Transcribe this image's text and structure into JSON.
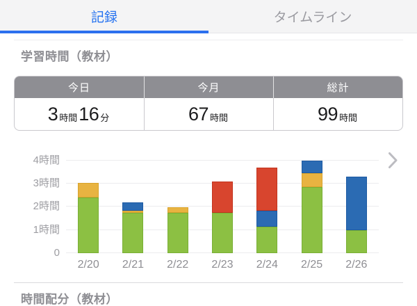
{
  "tabs": [
    {
      "label": "記録",
      "active": true
    },
    {
      "label": "タイムライン",
      "active": false
    }
  ],
  "sections": {
    "study_time": {
      "title": "学習時間（教材）"
    },
    "time_allocation": {
      "title": "時間配分（教材）"
    }
  },
  "summary_table": {
    "columns": [
      {
        "header": "今日",
        "num1": "3",
        "unit1": "時間",
        "num2": "16",
        "unit2": "分"
      },
      {
        "header": "今月",
        "num1": "67",
        "unit1": "時間"
      },
      {
        "header": "総計",
        "num1": "99",
        "unit1": "時間"
      }
    ]
  },
  "chart_data": {
    "type": "bar",
    "stacked": true,
    "title": "学習時間（教材）",
    "xlabel": "",
    "ylabel": "",
    "unit": "時間",
    "categories": [
      "2/20",
      "2/21",
      "2/22",
      "2/23",
      "2/24",
      "2/25",
      "2/26"
    ],
    "series": [
      {
        "name": "green",
        "color": "#8cc043",
        "border": "#79af35",
        "values": [
          2.4,
          1.75,
          1.75,
          1.75,
          1.15,
          2.85,
          1.0
        ]
      },
      {
        "name": "yellow",
        "color": "#e8b341",
        "border": "#d8a32c",
        "values": [
          0.65,
          0.1,
          0.25,
          0,
          0,
          0.6,
          0
        ]
      },
      {
        "name": "blue",
        "color": "#2b6bb3",
        "border": "#1d5aa3",
        "values": [
          0,
          0.35,
          0,
          0,
          0.7,
          0.55,
          2.3
        ]
      },
      {
        "name": "red",
        "color": "#d8452e",
        "border": "#c2331d",
        "values": [
          0,
          0,
          0,
          1.35,
          1.85,
          0,
          0
        ]
      }
    ],
    "totals": [
      3.05,
      2.2,
      2.0,
      3.1,
      3.7,
      4.0,
      3.3
    ],
    "y_ticks": [
      {
        "value": 0,
        "label": "0"
      },
      {
        "value": 1,
        "label": "1時間"
      },
      {
        "value": 2,
        "label": "2時間"
      },
      {
        "value": 3,
        "label": "3時間"
      },
      {
        "value": 4,
        "label": "4時間"
      }
    ],
    "ylim": [
      0,
      4.45
    ],
    "grid": "horizontal",
    "legend": "none"
  },
  "colors": {
    "accent_blue": "#2371f0",
    "header_gray": "#8e8e93",
    "chevron_gray": "#bcbcc1"
  },
  "icons": {
    "next_chevron": "chevron-right"
  }
}
